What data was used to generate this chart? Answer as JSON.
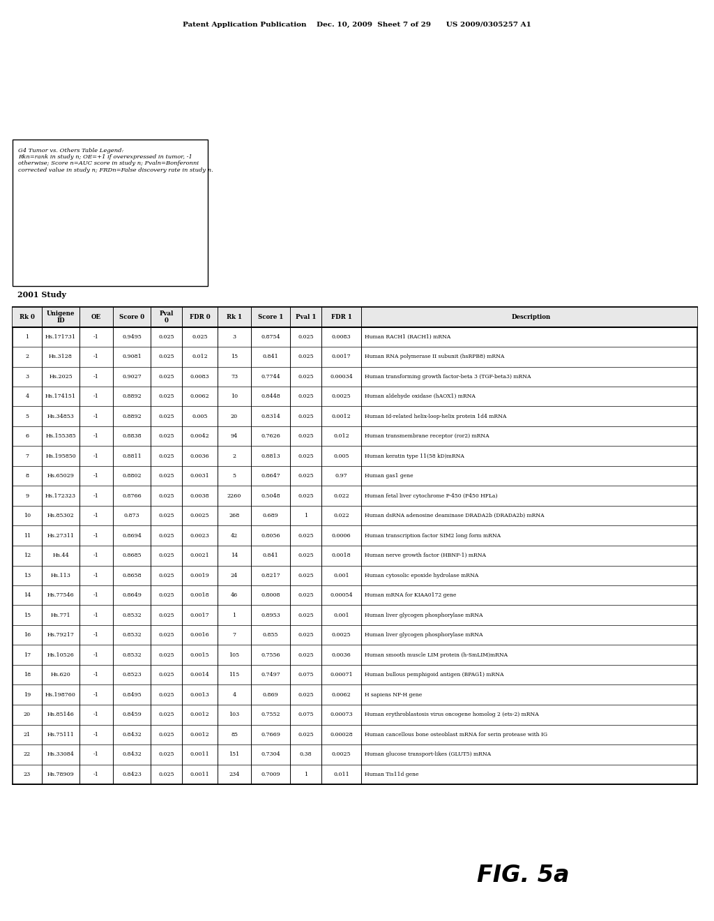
{
  "header_text": "Patent Application Publication    Dec. 10, 2009  Sheet 7 of 29      US 2009/0305257 A1",
  "fig_label": "FIG. 5a",
  "study_label": "2001 Study",
  "legend_text": "G4 Tumor vs. Others Table Legend:\nRkn=rank in study n; OE=+1 if overexpressed in tumor, -1\notherwise; Score n=AUC score in study n; Pvaln=Bonferonni\ncorrected value in study n; FRDn=False discovery rate in study n.",
  "col_headers": [
    "Rk 0",
    "Unigene\nID",
    "OE",
    "Score 0",
    "Pval\n0",
    "FDR 0",
    "Rk 1",
    "Score 1",
    "Pval 1",
    "FDR 1",
    "Description"
  ],
  "rows": [
    [
      "1",
      "Hs.171731",
      "-1",
      "0.9495",
      "0.025",
      "0.025",
      "3",
      "0.8754",
      "0.025",
      "0.0083",
      "Human RACH1 (RACH1) mRNA"
    ],
    [
      "2",
      "Hs.3128",
      "-1",
      "0.9081",
      "0.025",
      "0.012",
      "15",
      "0.841",
      "0.025",
      "0.0017",
      "Human RNA polymerase II subunit (hsRPB8) mRNA"
    ],
    [
      "3",
      "Hs.2025",
      "-1",
      "0.9027",
      "0.025",
      "0.0083",
      "73",
      "0.7744",
      "0.025",
      "0.00034",
      "Human transforming growth factor-beta 3 (TGF-beta3) mRNA"
    ],
    [
      "4",
      "Hs.174151",
      "-1",
      "0.8892",
      "0.025",
      "0.0062",
      "10",
      "0.8448",
      "0.025",
      "0.0025",
      "Human aldehyde oxidase (hAOX1) mRNA"
    ],
    [
      "5",
      "Hs.34853",
      "-1",
      "0.8892",
      "0.025",
      "0.005",
      "20",
      "0.8314",
      "0.025",
      "0.0012",
      "Human Id-related helix-loop-helix protein 1d4 mRNA"
    ],
    [
      "6",
      "Hs.155385",
      "-1",
      "0.8838",
      "0.025",
      "0.0042",
      "94",
      "0.7626",
      "0.025",
      "0.012",
      "Human transmembrane receptor (ror2) mRNA"
    ],
    [
      "7",
      "Hs.195850",
      "-1",
      "0.8811",
      "0.025",
      "0.0036",
      "2",
      "0.8813",
      "0.025",
      "0.005",
      "Human keratin type 11(58 kD)mRNA"
    ],
    [
      "8",
      "Hs.65029",
      "-1",
      "0.8802",
      "0.025",
      "0.0031",
      "5",
      "0.8647",
      "0.025",
      "0.97",
      "Human gas1 gene"
    ],
    [
      "9",
      "Hs.172323",
      "-1",
      "0.8766",
      "0.025",
      "0.0038",
      "2260",
      "0.5048",
      "0.025",
      "0.022",
      "Human fetal liver cytochrome P-450 (P450 HFLa)"
    ],
    [
      "10",
      "Hs.85302",
      "-1",
      "0.873",
      "0.025",
      "0.0025",
      "268",
      "0.689",
      "1",
      "0.022",
      "Human dsRNA adenosine deaminase DRADA2b (DRADA2b) mRNA"
    ],
    [
      "11",
      "Hs.27311",
      "-1",
      "0.8694",
      "0.025",
      "0.0023",
      "42",
      "0.8056",
      "0.025",
      "0.0006",
      "Human transcription factor SIM2 long form mRNA"
    ],
    [
      "12",
      "Hs.44",
      "-1",
      "0.8685",
      "0.025",
      "0.0021",
      "14",
      "0.841",
      "0.025",
      "0.0018",
      "Human nerve growth factor (HBNF-1) mRNA"
    ],
    [
      "13",
      "Hs.113",
      "-1",
      "0.8658",
      "0.025",
      "0.0019",
      "24",
      "0.8217",
      "0.025",
      "0.001",
      "Human cytosolic epoxide hydrolase mRNA"
    ],
    [
      "14",
      "Hs.77546",
      "-1",
      "0.8649",
      "0.025",
      "0.0018",
      "46",
      "0.8008",
      "0.025",
      "0.00054",
      "Human mRNA for KIAA0172 gene"
    ],
    [
      "15",
      "Hs.771",
      "-1",
      "0.8532",
      "0.025",
      "0.0017",
      "1",
      "0.8953",
      "0.025",
      "0.001",
      "Human liver glycogen phosphorylase mRNA"
    ],
    [
      "16",
      "Hs.79217",
      "-1",
      "0.8532",
      "0.025",
      "0.0016",
      "7",
      "0.855",
      "0.025",
      "0.0025",
      "Human liver glycogen phosphorylase mRNA"
    ],
    [
      "17",
      "Hs.10526",
      "-1",
      "0.8532",
      "0.025",
      "0.0015",
      "105",
      "0.7556",
      "0.025",
      "0.0036",
      "Human smooth muscle LIM protein (h-SmLIM)mRNA"
    ],
    [
      "18",
      "Hs.620",
      "-1",
      "0.8523",
      "0.025",
      "0.0014",
      "115",
      "0.7497",
      "0.075",
      "0.00071",
      "Human bullous pemphigoid antigen (BPAG1) mRNA"
    ],
    [
      "19",
      "Hs.198760",
      "-1",
      "0.8495",
      "0.025",
      "0.0013",
      "4",
      "0.869",
      "0.025",
      "0.0062",
      "H sapiens NF-H gene"
    ],
    [
      "20",
      "Hs.85146",
      "-1",
      "0.8459",
      "0.025",
      "0.0012",
      "103",
      "0.7552",
      "0.075",
      "0.00073",
      "Human erythroblastosis virus oncogene homolog 2 (ets-2) mRNA"
    ],
    [
      "21",
      "Hs.75111",
      "-1",
      "0.8432",
      "0.025",
      "0.0012",
      "85",
      "0.7669",
      "0.025",
      "0.00028",
      "Human cancellous bone osteoblast mRNA for serin protease with IG"
    ],
    [
      "22",
      "Hs.33084",
      "-1",
      "0.8432",
      "0.025",
      "0.0011",
      "151",
      "0.7304",
      "0.38",
      "0.0025",
      "Human glucose transport-likes (GLUT5) mRNA"
    ],
    [
      "23",
      "Hs.78909",
      "-1",
      "0.8423",
      "0.025",
      "0.0011",
      "234",
      "0.7009",
      "1",
      "0.011",
      "Human Tis11d gene"
    ]
  ]
}
